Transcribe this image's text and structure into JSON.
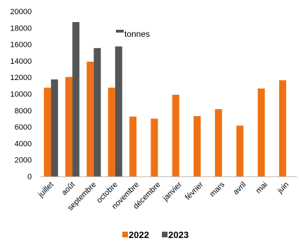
{
  "chart_data": {
    "type": "bar",
    "unit_label": "tonnes",
    "categories": [
      "juillet",
      "août",
      "septembre",
      "octobre",
      "novembre",
      "décembre",
      "janvier",
      "février",
      "mars",
      "avril",
      "mai",
      "juin"
    ],
    "series": [
      {
        "name": "2022",
        "color": "#F07114",
        "values": [
          10750,
          12050,
          13900,
          10750,
          7250,
          7000,
          9900,
          7300,
          8150,
          6150,
          10650,
          11650
        ]
      },
      {
        "name": "2023",
        "color": "#555555",
        "values": [
          11750,
          18700,
          15550,
          15750,
          null,
          null,
          null,
          null,
          null,
          null,
          null,
          null
        ]
      }
    ],
    "ylim": [
      0,
      20000
    ],
    "yticks": [
      0,
      2000,
      4000,
      6000,
      8000,
      10000,
      12000,
      14000,
      16000,
      18000,
      20000
    ],
    "grid": false,
    "legend_position": "bottom"
  }
}
